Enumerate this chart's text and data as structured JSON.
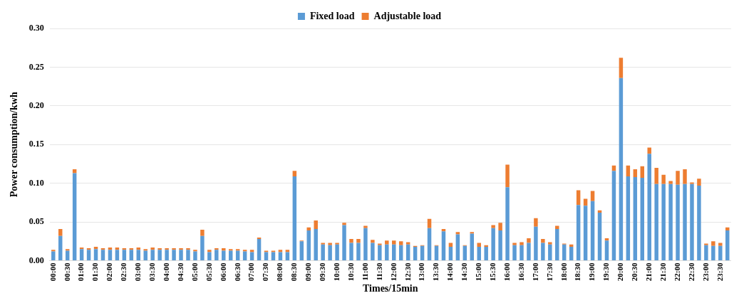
{
  "chart_data": {
    "type": "bar",
    "stacked": true,
    "xlabel": "Times/15min",
    "ylabel": "Power consumption/kwh",
    "categories": [
      "00:00",
      null,
      "00:30",
      null,
      "01:00",
      null,
      "01:30",
      null,
      "02:00",
      null,
      "02:30",
      null,
      "03:00",
      null,
      "03:30",
      null,
      "04:00",
      null,
      "04:30",
      null,
      "05:00",
      null,
      "05:30",
      null,
      "06:00",
      null,
      "06:30",
      null,
      "07:00",
      null,
      "07:30",
      null,
      "08:00",
      null,
      "08:30",
      null,
      "09:00",
      null,
      "09:30",
      null,
      "10:00",
      null,
      "10:30",
      null,
      "11:00",
      null,
      "11:30",
      null,
      "12:00",
      null,
      "12:30",
      null,
      "13:00",
      null,
      "13:30",
      null,
      "14:00",
      null,
      "14:30",
      null,
      "15:00",
      null,
      "15:30",
      null,
      "16:00",
      null,
      "16:30",
      null,
      "17:00",
      null,
      "17:30",
      null,
      "18:00",
      null,
      "18:30",
      null,
      "19:00",
      null,
      "19:30",
      null,
      "20:00",
      null,
      "20:30",
      null,
      "21:00",
      null,
      "21:30",
      null,
      "22:00",
      null,
      "22:30",
      null,
      "23:00",
      null,
      "23:30",
      null
    ],
    "series": [
      {
        "name": "Fixed load",
        "color": "#5b9bd5",
        "values": [
          0.012,
          0.032,
          0.013,
          0.113,
          0.015,
          0.014,
          0.015,
          0.014,
          0.014,
          0.014,
          0.014,
          0.014,
          0.014,
          0.013,
          0.014,
          0.014,
          0.014,
          0.014,
          0.014,
          0.014,
          0.012,
          0.032,
          0.011,
          0.014,
          0.013,
          0.013,
          0.013,
          0.012,
          0.011,
          0.028,
          0.011,
          0.011,
          0.011,
          0.011,
          0.109,
          0.025,
          0.039,
          0.041,
          0.021,
          0.02,
          0.021,
          0.046,
          0.023,
          0.023,
          0.042,
          0.023,
          0.02,
          0.021,
          0.021,
          0.02,
          0.021,
          0.018,
          0.019,
          0.042,
          0.019,
          0.038,
          0.018,
          0.034,
          0.019,
          0.035,
          0.018,
          0.018,
          0.042,
          0.039,
          0.095,
          0.02,
          0.02,
          0.023,
          0.044,
          0.023,
          0.021,
          0.041,
          0.021,
          0.018,
          0.072,
          0.071,
          0.077,
          0.062,
          0.026,
          0.116,
          0.236,
          0.109,
          0.108,
          0.107,
          0.138,
          0.099,
          0.099,
          0.099,
          0.098,
          0.099,
          0.099,
          0.097,
          0.02,
          0.019,
          0.019,
          0.039
        ]
      },
      {
        "name": "Adjustable load",
        "color": "#ed7d31",
        "values": [
          0.002,
          0.009,
          0.002,
          0.005,
          0.002,
          0.002,
          0.003,
          0.002,
          0.003,
          0.003,
          0.002,
          0.002,
          0.003,
          0.002,
          0.003,
          0.002,
          0.002,
          0.002,
          0.002,
          0.002,
          0.002,
          0.008,
          0.003,
          0.002,
          0.003,
          0.002,
          0.002,
          0.002,
          0.003,
          0.002,
          0.002,
          0.002,
          0.003,
          0.003,
          0.007,
          0.001,
          0.004,
          0.011,
          0.002,
          0.003,
          0.002,
          0.003,
          0.005,
          0.005,
          0.003,
          0.004,
          0.002,
          0.005,
          0.005,
          0.005,
          0.003,
          0.001,
          0.001,
          0.012,
          0.001,
          0.003,
          0.005,
          0.003,
          0.001,
          0.002,
          0.005,
          0.002,
          0.004,
          0.01,
          0.029,
          0.003,
          0.004,
          0.006,
          0.011,
          0.005,
          0.003,
          0.004,
          0.001,
          0.003,
          0.019,
          0.009,
          0.013,
          0.003,
          0.003,
          0.007,
          0.026,
          0.014,
          0.01,
          0.015,
          0.008,
          0.021,
          0.012,
          0.004,
          0.018,
          0.019,
          0.002,
          0.009,
          0.002,
          0.006,
          0.004,
          0.004
        ]
      }
    ],
    "ylim": [
      0,
      0.3
    ],
    "yticks": [
      {
        "value": 0,
        "label": "0.00"
      },
      {
        "value": 0.05,
        "label": "0.05"
      },
      {
        "value": 0.1,
        "label": "0.10"
      },
      {
        "value": 0.15,
        "label": "0.15"
      },
      {
        "value": 0.2,
        "label": "0.20"
      },
      {
        "value": 0.25,
        "label": "0.25"
      },
      {
        "value": 0.3,
        "label": "0.30"
      }
    ],
    "grid": "y",
    "legend": "top"
  }
}
